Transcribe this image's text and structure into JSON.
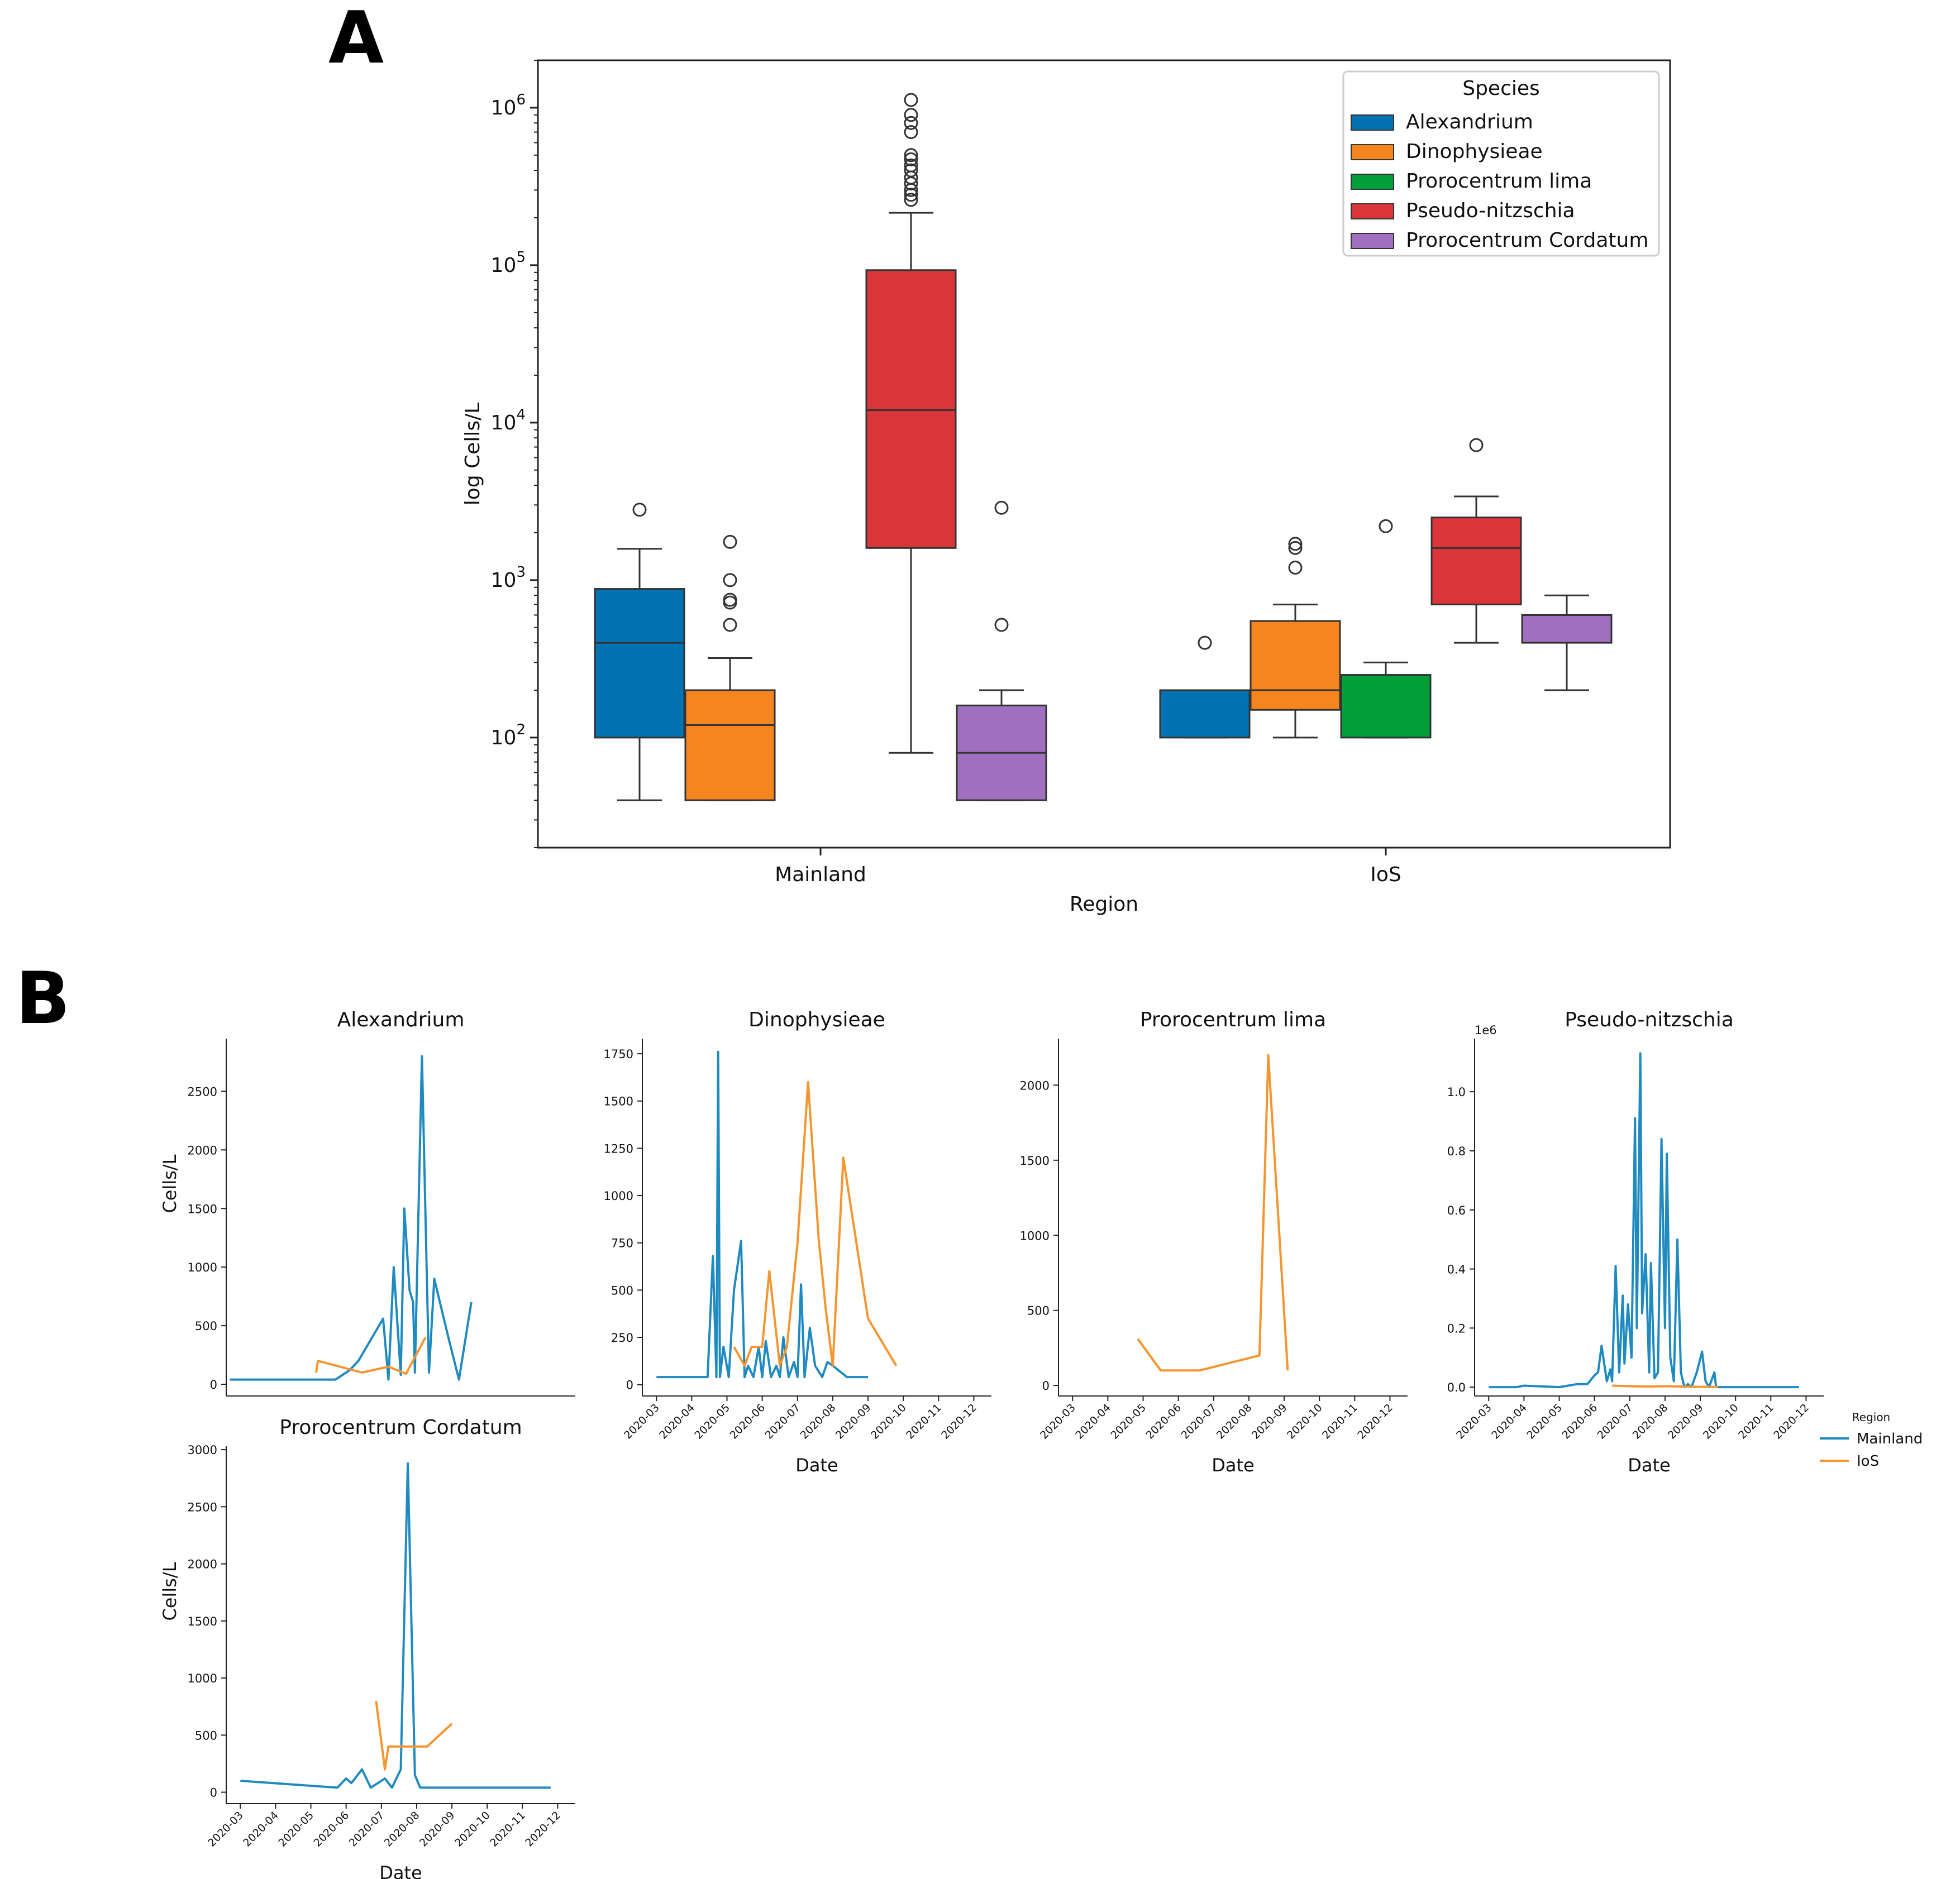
{
  "panels": {
    "a": "A",
    "b": "B"
  },
  "colors": {
    "Alexandrium": "#0173b2",
    "Dinophysieae": "#f5861f",
    "Prorocentrum lima": "#029e3a",
    "Pseudo-nitzschia": "#dc3539",
    "Prorocentrum Cordatum": "#a06fbf",
    "Mainland": "#1f8ac0",
    "IoS": "#f5952f"
  },
  "chart_data": [
    {
      "id": "A",
      "type": "box",
      "title": "",
      "xlabel": "Region",
      "ylabel": "log Cells/L",
      "yscale": "log",
      "ylim": [
        20,
        2000000
      ],
      "yticks": [
        100,
        1000,
        10000,
        100000,
        1000000
      ],
      "ytick_exponents": [
        "2",
        "3",
        "4",
        "5",
        "6"
      ],
      "categories": [
        "Mainland",
        "IoS"
      ],
      "legend": {
        "title": "Species",
        "position": "top-right",
        "entries": [
          "Alexandrium",
          "Dinophysieae",
          "Prorocentrum lima",
          "Pseudo-nitzschia",
          "Prorocentrum Cordatum"
        ]
      },
      "boxes": [
        {
          "region": "Mainland",
          "species": "Alexandrium",
          "slot": 0,
          "q1": 100,
          "median": 400,
          "q3": 880,
          "whislo": 40,
          "whishi": 1580,
          "fliers": [
            2800
          ]
        },
        {
          "region": "Mainland",
          "species": "Dinophysieae",
          "slot": 1,
          "q1": 40,
          "median": 120,
          "q3": 200,
          "whislo": 40,
          "whishi": 320,
          "fliers": [
            520,
            720,
            750,
            1000,
            1750
          ]
        },
        {
          "region": "Mainland",
          "species": "Pseudo-nitzschia",
          "slot": 3,
          "q1": 1600,
          "median": 12000,
          "q3": 93000,
          "whislo": 80,
          "whishi": 215000,
          "fliers": [
            260000,
            280000,
            300000,
            330000,
            360000,
            400000,
            430000,
            470000,
            500000,
            700000,
            800000,
            900000,
            1120000
          ]
        },
        {
          "region": "Mainland",
          "species": "Prorocentrum Cordatum",
          "slot": 4,
          "q1": 40,
          "median": 80,
          "q3": 160,
          "whislo": 40,
          "whishi": 200,
          "fliers": [
            520,
            2880
          ]
        },
        {
          "region": "IoS",
          "species": "Alexandrium",
          "slot": 0,
          "q1": 100,
          "median": 200,
          "q3": 200,
          "whislo": 100,
          "whishi": 200,
          "fliers": [
            400
          ]
        },
        {
          "region": "IoS",
          "species": "Dinophysieae",
          "slot": 1,
          "q1": 150,
          "median": 200,
          "q3": 550,
          "whislo": 100,
          "whishi": 700,
          "fliers": [
            1200,
            1600,
            1700
          ]
        },
        {
          "region": "IoS",
          "species": "Prorocentrum lima",
          "slot": 2,
          "q1": 100,
          "median": 250,
          "q3": 250,
          "whislo": 100,
          "whishi": 300,
          "fliers": [
            2200
          ]
        },
        {
          "region": "IoS",
          "species": "Pseudo-nitzschia",
          "slot": 3,
          "q1": 700,
          "median": 1600,
          "q3": 2500,
          "whislo": 400,
          "whishi": 3400,
          "fliers": [
            7200
          ]
        },
        {
          "region": "IoS",
          "species": "Prorocentrum Cordatum",
          "slot": 4,
          "q1": 400,
          "median": 600,
          "q3": 600,
          "whislo": 200,
          "whishi": 800,
          "fliers": []
        }
      ]
    },
    {
      "id": "B1",
      "type": "line",
      "title": "Alexandrium",
      "xlabel": "",
      "ylabel": "Cells/L",
      "ylim": [
        -100,
        2950
      ],
      "yticks": [
        0,
        500,
        1000,
        1500,
        2000,
        2500
      ],
      "ytick_labels": [
        "0",
        "500",
        "1000",
        "1500",
        "2000",
        "2500"
      ],
      "xlim": [
        0,
        9.9
      ],
      "show_xticks": false,
      "offset_label": "",
      "series": [
        {
          "name": "Mainland",
          "x": [
            0.1,
            3.1,
            3.5,
            3.75,
            4.45,
            4.6,
            4.75,
            4.95,
            5.05,
            5.2,
            5.3,
            5.35,
            5.55,
            5.75,
            5.9,
            6.3,
            6.6,
            6.95
          ],
          "y": [
            40,
            40,
            120,
            200,
            560,
            40,
            1000,
            80,
            1500,
            800,
            700,
            100,
            2800,
            100,
            900,
            400,
            40,
            700
          ]
        },
        {
          "name": "IoS",
          "x": [
            2.55,
            2.6,
            3.85,
            4.6,
            5.1,
            5.65
          ],
          "y": [
            100,
            200,
            100,
            150,
            90,
            400
          ]
        }
      ]
    },
    {
      "id": "B2",
      "type": "line",
      "title": "Dinophysieae",
      "xlabel": "Date",
      "ylabel": "",
      "ylim": [
        -60,
        1830
      ],
      "yticks": [
        0,
        250,
        500,
        750,
        1000,
        1250,
        1500,
        1750
      ],
      "ytick_labels": [
        "0",
        "250",
        "500",
        "750",
        "1000",
        "1250",
        "1500",
        "1750"
      ],
      "xlim": [
        -0.4,
        9.5
      ],
      "show_xticks": true,
      "offset_label": "",
      "xticks": [
        0,
        1,
        2,
        3,
        4,
        5,
        6,
        7,
        8,
        9
      ],
      "xtick_labels": [
        "2020-03",
        "2020-04",
        "2020-05",
        "2020-06",
        "2020-07",
        "2020-08",
        "2020-09",
        "2020-10",
        "2020-11",
        "2020-12"
      ],
      "series": [
        {
          "name": "Mainland",
          "x": [
            0,
            1.45,
            1.6,
            1.7,
            1.75,
            1.8,
            1.9,
            2.05,
            2.2,
            2.4,
            2.5,
            2.6,
            2.75,
            2.9,
            3.0,
            3.1,
            3.25,
            3.4,
            3.5,
            3.6,
            3.75,
            3.9,
            4.0,
            4.1,
            4.2,
            4.35,
            4.5,
            4.7,
            4.85,
            5.0,
            5.4,
            6.0
          ],
          "y": [
            40,
            40,
            680,
            40,
            1760,
            40,
            200,
            40,
            500,
            760,
            40,
            100,
            40,
            200,
            40,
            230,
            40,
            100,
            40,
            250,
            40,
            120,
            40,
            530,
            40,
            300,
            100,
            40,
            120,
            100,
            40,
            40
          ]
        },
        {
          "name": "IoS",
          "x": [
            2.2,
            2.5,
            2.7,
            3.0,
            3.2,
            3.5,
            3.7,
            4.0,
            4.3,
            4.6,
            4.8,
            5.0,
            5.3,
            6.0,
            6.8
          ],
          "y": [
            200,
            100,
            200,
            200,
            600,
            100,
            200,
            750,
            1600,
            770,
            400,
            100,
            1200,
            350,
            100
          ]
        }
      ]
    },
    {
      "id": "B3",
      "type": "line",
      "title": "Prorocentrum lima",
      "xlabel": "Date",
      "ylabel": "",
      "ylim": [
        -70,
        2310
      ],
      "yticks": [
        0,
        500,
        1000,
        1500,
        2000
      ],
      "ytick_labels": [
        "0",
        "500",
        "1000",
        "1500",
        "2000"
      ],
      "xlim": [
        -0.4,
        9.5
      ],
      "show_xticks": true,
      "offset_label": "",
      "xticks": [
        0,
        1,
        2,
        3,
        4,
        5,
        6,
        7,
        8,
        9
      ],
      "xtick_labels": [
        "2020-03",
        "2020-04",
        "2020-05",
        "2020-06",
        "2020-07",
        "2020-08",
        "2020-09",
        "2020-10",
        "2020-11",
        "2020-12"
      ],
      "series": [
        {
          "name": "IoS",
          "x": [
            1.85,
            2.5,
            3.6,
            5.3,
            5.55,
            6.1
          ],
          "y": [
            310,
            100,
            100,
            200,
            2200,
            100
          ]
        }
      ]
    },
    {
      "id": "B4",
      "type": "line",
      "title": "Pseudo-nitzschia",
      "xlabel": "Date",
      "ylabel": "",
      "ylim": [
        -0.03,
        1.18
      ],
      "yticks": [
        0,
        0.2,
        0.4,
        0.6,
        0.8,
        1.0
      ],
      "ytick_labels": [
        "0.0",
        "0.2",
        "0.4",
        "0.6",
        "0.8",
        "1.0"
      ],
      "xlim": [
        -0.4,
        9.5
      ],
      "show_xticks": true,
      "offset_label": "1e6",
      "xticks": [
        0,
        1,
        2,
        3,
        4,
        5,
        6,
        7,
        8,
        9
      ],
      "xtick_labels": [
        "2020-03",
        "2020-04",
        "2020-05",
        "2020-06",
        "2020-07",
        "2020-08",
        "2020-09",
        "2020-10",
        "2020-11",
        "2020-12"
      ],
      "legend": {
        "title": "Region",
        "position": "right",
        "entries": [
          "Mainland",
          "IoS"
        ]
      },
      "series": [
        {
          "name": "Mainland",
          "x": [
            0,
            0.8,
            1.0,
            2.0,
            2.5,
            2.8,
            3.0,
            3.1,
            3.2,
            3.35,
            3.45,
            3.5,
            3.6,
            3.7,
            3.8,
            3.85,
            3.95,
            4.05,
            4.15,
            4.2,
            4.3,
            4.35,
            4.45,
            4.55,
            4.6,
            4.7,
            4.8,
            4.9,
            5.0,
            5.05,
            5.15,
            5.25,
            5.35,
            5.45,
            5.55,
            5.65,
            5.75,
            5.9,
            6.05,
            6.15,
            6.25,
            6.4,
            6.45,
            7.0,
            8.0,
            8.8
          ],
          "y": [
            0,
            0,
            0.005,
            0,
            0.01,
            0.01,
            0.04,
            0.05,
            0.14,
            0.02,
            0.06,
            0.02,
            0.41,
            0.05,
            0.31,
            0.08,
            0.28,
            0.1,
            0.91,
            0.2,
            1.13,
            0.25,
            0.45,
            0.05,
            0.42,
            0.03,
            0.05,
            0.84,
            0.2,
            0.79,
            0.1,
            0.02,
            0.5,
            0.05,
            0,
            0.01,
            0,
            0.05,
            0.12,
            0.02,
            0,
            0.05,
            0,
            0,
            0,
            0
          ]
        },
        {
          "name": "IoS",
          "x": [
            3.5,
            4.0,
            4.5,
            5.0,
            5.5,
            6.0,
            6.5
          ],
          "y": [
            0.005,
            0.003,
            0.002,
            0.003,
            0.002,
            0.001,
            0.001
          ]
        }
      ]
    },
    {
      "id": "B5",
      "type": "line",
      "title": "Prorocentrum Cordatum",
      "xlabel": "Date",
      "ylabel": "Cells/L",
      "ylim": [
        -100,
        3030
      ],
      "yticks": [
        0,
        500,
        1000,
        1500,
        2000,
        2500,
        3000
      ],
      "ytick_labels": [
        "0",
        "500",
        "1000",
        "1500",
        "2000",
        "2500",
        "3000"
      ],
      "xlim": [
        -0.4,
        9.5
      ],
      "show_xticks": true,
      "offset_label": "",
      "xticks": [
        0,
        1,
        2,
        3,
        4,
        5,
        6,
        7,
        8,
        9
      ],
      "xtick_labels": [
        "2020-03",
        "2020-04",
        "2020-05",
        "2020-06",
        "2020-07",
        "2020-08",
        "2020-09",
        "2020-10",
        "2020-11",
        "2020-12"
      ],
      "series": [
        {
          "name": "Mainland",
          "x": [
            0,
            2.75,
            3.0,
            3.15,
            3.45,
            3.7,
            4.1,
            4.3,
            4.55,
            4.75,
            4.95,
            5.1,
            5.3,
            6.0,
            7.0,
            8.8
          ],
          "y": [
            100,
            40,
            120,
            80,
            200,
            40,
            120,
            40,
            200,
            2880,
            150,
            40,
            40,
            40,
            40,
            40
          ]
        },
        {
          "name": "IoS",
          "x": [
            3.85,
            4.1,
            4.2,
            5.0,
            5.3,
            6.0
          ],
          "y": [
            800,
            200,
            400,
            400,
            400,
            600
          ]
        }
      ]
    }
  ]
}
